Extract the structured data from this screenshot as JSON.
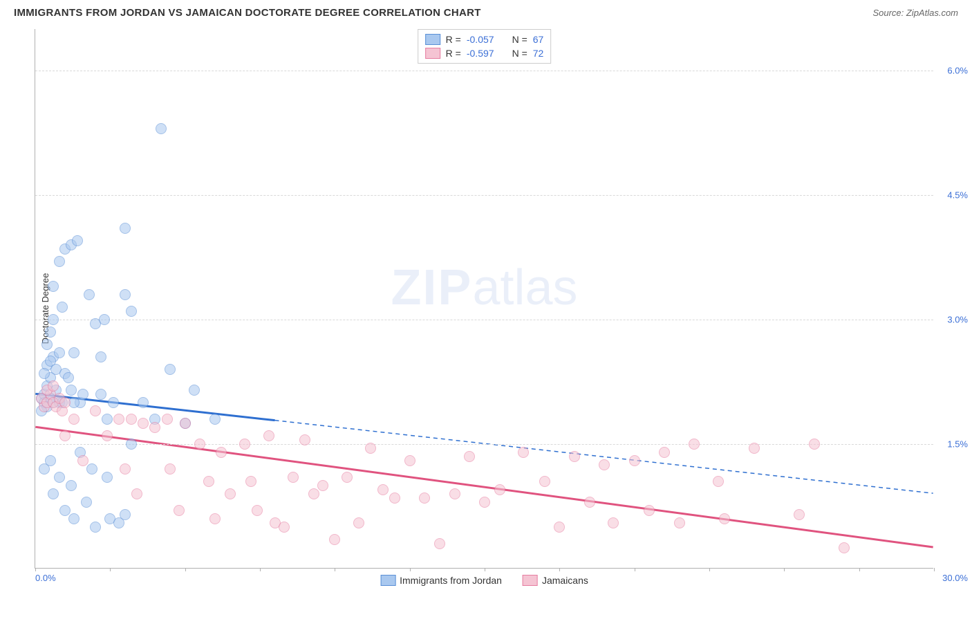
{
  "header": {
    "title": "IMMIGRANTS FROM JORDAN VS JAMAICAN DOCTORATE DEGREE CORRELATION CHART",
    "source": "Source: ZipAtlas.com"
  },
  "chart": {
    "type": "scatter",
    "watermark_zip": "ZIP",
    "watermark_atlas": "atlas",
    "background_color": "#ffffff",
    "grid_color": "#d8d8d8",
    "axis_color": "#b0b0b0",
    "yaxis_title": "Doctorate Degree",
    "xlim": [
      0,
      30
    ],
    "ylim": [
      0,
      6.5
    ],
    "y_ticks": [
      {
        "v": 1.5,
        "label": "1.5%"
      },
      {
        "v": 3.0,
        "label": "3.0%"
      },
      {
        "v": 4.5,
        "label": "4.5%"
      },
      {
        "v": 6.0,
        "label": "6.0%"
      }
    ],
    "x_ticks_minor": [
      0,
      2.5,
      5,
      7.5,
      10,
      12.5,
      15,
      17.5,
      20,
      22.5,
      25,
      27.5,
      30
    ],
    "x_min_label": "0.0%",
    "x_max_label": "30.0%",
    "series": [
      {
        "name": "Immigrants from Jordan",
        "fill_color": "#a9c8ef",
        "stroke_color": "#5a8fd6",
        "line_color": "#2e6fd0",
        "R_label": "R = ",
        "R_value": "-0.057",
        "N_label": "N = ",
        "N_value": "67",
        "trend": {
          "x1": 0,
          "y1": 2.1,
          "x2": 30,
          "y2": 0.9,
          "solid_until_x": 8
        },
        "points": [
          [
            0.2,
            2.05
          ],
          [
            0.3,
            2.0
          ],
          [
            0.3,
            2.1
          ],
          [
            0.4,
            2.2
          ],
          [
            0.4,
            1.95
          ],
          [
            0.5,
            2.05
          ],
          [
            0.5,
            2.3
          ],
          [
            0.6,
            2.55
          ],
          [
            0.6,
            2.0
          ],
          [
            0.7,
            2.15
          ],
          [
            0.7,
            2.4
          ],
          [
            0.8,
            2.0
          ],
          [
            0.8,
            2.6
          ],
          [
            0.4,
            2.7
          ],
          [
            0.5,
            2.85
          ],
          [
            0.6,
            3.0
          ],
          [
            0.8,
            3.7
          ],
          [
            1.0,
            3.85
          ],
          [
            1.2,
            3.9
          ],
          [
            1.4,
            3.95
          ],
          [
            0.6,
            3.4
          ],
          [
            0.9,
            3.15
          ],
          [
            1.0,
            2.35
          ],
          [
            1.2,
            2.15
          ],
          [
            1.3,
            2.6
          ],
          [
            1.5,
            2.0
          ],
          [
            1.6,
            2.1
          ],
          [
            1.8,
            3.3
          ],
          [
            2.0,
            2.95
          ],
          [
            2.3,
            3.0
          ],
          [
            2.2,
            2.1
          ],
          [
            2.4,
            1.8
          ],
          [
            2.6,
            2.0
          ],
          [
            3.0,
            3.3
          ],
          [
            3.2,
            3.1
          ],
          [
            3.0,
            4.1
          ],
          [
            4.2,
            5.3
          ],
          [
            3.6,
            2.0
          ],
          [
            4.0,
            1.8
          ],
          [
            4.5,
            2.4
          ],
          [
            5.0,
            1.75
          ],
          [
            5.3,
            2.15
          ],
          [
            6.0,
            1.8
          ],
          [
            0.3,
            1.2
          ],
          [
            0.5,
            1.3
          ],
          [
            0.6,
            0.9
          ],
          [
            0.8,
            1.1
          ],
          [
            1.0,
            0.7
          ],
          [
            1.2,
            1.0
          ],
          [
            1.3,
            0.6
          ],
          [
            1.5,
            1.4
          ],
          [
            1.7,
            0.8
          ],
          [
            1.9,
            1.2
          ],
          [
            2.0,
            0.5
          ],
          [
            2.2,
            2.55
          ],
          [
            2.4,
            1.1
          ],
          [
            2.5,
            0.6
          ],
          [
            2.8,
            0.55
          ],
          [
            3.0,
            0.65
          ],
          [
            3.2,
            1.5
          ],
          [
            0.4,
            2.45
          ],
          [
            0.9,
            2.0
          ],
          [
            1.1,
            2.3
          ],
          [
            1.3,
            2.0
          ],
          [
            0.2,
            1.9
          ],
          [
            0.3,
            2.35
          ],
          [
            0.5,
            2.5
          ]
        ]
      },
      {
        "name": "Jamaicans",
        "fill_color": "#f5c4d3",
        "stroke_color": "#e67da0",
        "line_color": "#e0537f",
        "R_label": "R = ",
        "R_value": "-0.597",
        "N_label": "N = ",
        "N_value": "72",
        "trend": {
          "x1": 0,
          "y1": 1.7,
          "x2": 30,
          "y2": 0.25,
          "solid_until_x": 30
        },
        "points": [
          [
            0.2,
            2.05
          ],
          [
            0.3,
            1.95
          ],
          [
            0.4,
            2.0
          ],
          [
            0.5,
            2.1
          ],
          [
            0.6,
            2.0
          ],
          [
            0.7,
            1.95
          ],
          [
            0.8,
            2.05
          ],
          [
            0.9,
            1.9
          ],
          [
            1.0,
            2.0
          ],
          [
            0.4,
            2.15
          ],
          [
            0.6,
            2.2
          ],
          [
            1.0,
            1.6
          ],
          [
            1.3,
            1.8
          ],
          [
            1.6,
            1.3
          ],
          [
            2.0,
            1.9
          ],
          [
            2.4,
            1.6
          ],
          [
            2.8,
            1.8
          ],
          [
            3.0,
            1.2
          ],
          [
            3.2,
            1.8
          ],
          [
            3.6,
            1.75
          ],
          [
            4.0,
            1.7
          ],
          [
            4.4,
            1.8
          ],
          [
            4.5,
            1.2
          ],
          [
            5.0,
            1.75
          ],
          [
            5.5,
            1.5
          ],
          [
            5.8,
            1.05
          ],
          [
            6.2,
            1.4
          ],
          [
            6.5,
            0.9
          ],
          [
            7.0,
            1.5
          ],
          [
            7.4,
            0.7
          ],
          [
            7.8,
            1.6
          ],
          [
            8.0,
            0.55
          ],
          [
            8.3,
            0.5
          ],
          [
            8.6,
            1.1
          ],
          [
            9.0,
            1.55
          ],
          [
            9.3,
            0.9
          ],
          [
            9.6,
            1.0
          ],
          [
            10.0,
            0.35
          ],
          [
            10.4,
            1.1
          ],
          [
            10.8,
            0.55
          ],
          [
            11.2,
            1.45
          ],
          [
            11.6,
            0.95
          ],
          [
            12.0,
            0.85
          ],
          [
            12.5,
            1.3
          ],
          [
            13.0,
            0.85
          ],
          [
            13.5,
            0.3
          ],
          [
            14.0,
            0.9
          ],
          [
            14.5,
            1.35
          ],
          [
            15.0,
            0.8
          ],
          [
            15.5,
            0.95
          ],
          [
            16.3,
            1.4
          ],
          [
            17.0,
            1.05
          ],
          [
            17.5,
            0.5
          ],
          [
            18.0,
            1.35
          ],
          [
            18.5,
            0.8
          ],
          [
            19.0,
            1.25
          ],
          [
            19.3,
            0.55
          ],
          [
            20.0,
            1.3
          ],
          [
            20.5,
            0.7
          ],
          [
            21.0,
            1.4
          ],
          [
            21.5,
            0.55
          ],
          [
            22.0,
            1.5
          ],
          [
            22.8,
            1.05
          ],
          [
            23.0,
            0.6
          ],
          [
            24.0,
            1.45
          ],
          [
            25.5,
            0.65
          ],
          [
            26.0,
            1.5
          ],
          [
            27.0,
            0.25
          ],
          [
            4.8,
            0.7
          ],
          [
            6.0,
            0.6
          ],
          [
            7.2,
            1.05
          ],
          [
            3.4,
            0.9
          ]
        ]
      }
    ]
  }
}
